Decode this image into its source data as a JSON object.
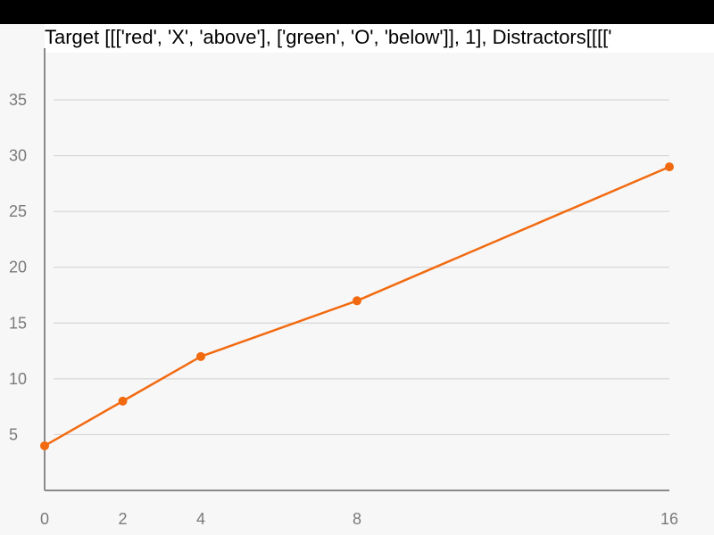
{
  "chart_data": {
    "type": "line",
    "title": "Target [[['red', 'X', 'above'], ['green', 'O', 'below']], 1], Distractors[[[['",
    "x": [
      0,
      2,
      4,
      8,
      16
    ],
    "series": [
      {
        "values": [
          4,
          8,
          12,
          17,
          29
        ]
      }
    ],
    "xticks": [
      "0",
      "2",
      "4",
      "8",
      "16"
    ],
    "yticks": [
      "5",
      "10",
      "15",
      "20",
      "25",
      "30",
      "35"
    ],
    "xlim": [
      0,
      16
    ],
    "ylim": [
      0,
      39
    ],
    "grid": true,
    "colors": {
      "series": "#f26a10",
      "grid": "#cfcfcf",
      "axis": "#8a8a8a",
      "background": "#f7f7f7"
    }
  }
}
